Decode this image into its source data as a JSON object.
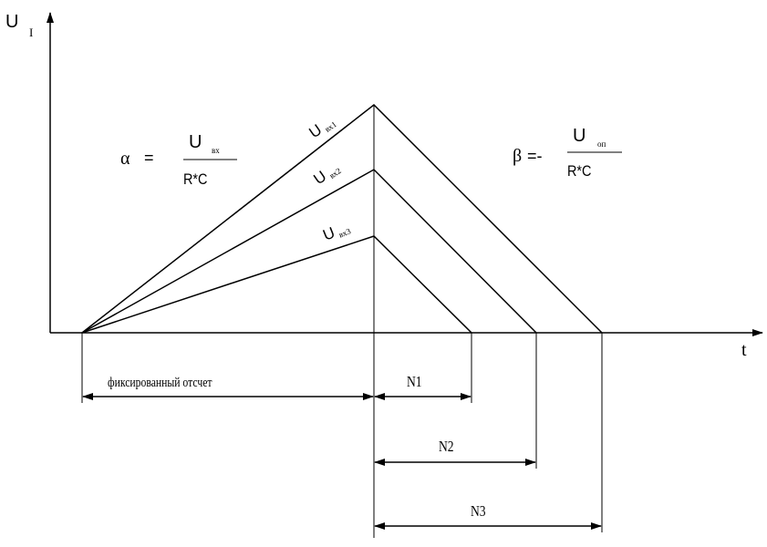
{
  "axes": {
    "y_label_main": "U",
    "y_label_sub": "I",
    "x_label": "t"
  },
  "curves": [
    {
      "label_main": "U",
      "label_sub": "вх1"
    },
    {
      "label_main": "U",
      "label_sub": "вх2"
    },
    {
      "label_main": "U",
      "label_sub": "вх3"
    }
  ],
  "formulas": {
    "alpha": {
      "symbol": "α",
      "operator": "=",
      "numerator_main": "U",
      "numerator_sub": "вх",
      "denominator": "R*C"
    },
    "beta": {
      "symbol": "β",
      "operator": "=-",
      "numerator_main": "U",
      "numerator_sub": "оп",
      "denominator": "R*C"
    }
  },
  "intervals": {
    "fixed": "фиксированный отсчет",
    "n1": "N1",
    "n2": "N2",
    "n3": "N3"
  },
  "colors": {
    "stroke": "#000000",
    "background": "#ffffff"
  }
}
